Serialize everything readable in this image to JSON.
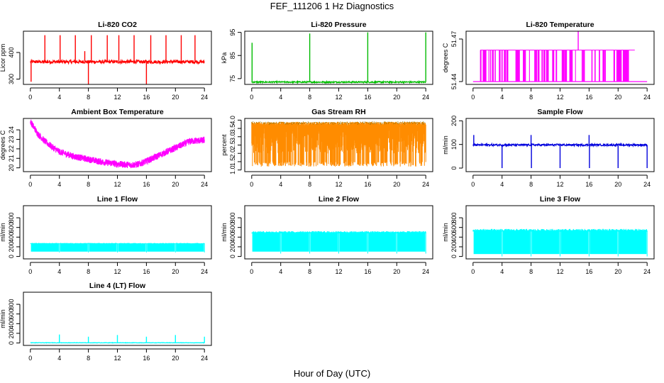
{
  "figure": {
    "title": "FEF_111206  1 Hz Diagnostics",
    "xlabel": "Hour of Day (UTC)"
  },
  "chart_data": [
    {
      "id": "co2",
      "type": "line",
      "title": "Li-820 CO2",
      "ylabel": "Licor ppm",
      "color": "#ff0000",
      "xlim": [
        0,
        24
      ],
      "xticks": [
        0,
        4,
        8,
        12,
        16,
        20,
        24
      ],
      "ylim": [
        280,
        480
      ],
      "yticks": [
        300,
        400
      ],
      "baseline": 365,
      "noise": 6,
      "spikes": [
        {
          "x": 2.0,
          "y": 465
        },
        {
          "x": 4.1,
          "y": 465
        },
        {
          "x": 6.2,
          "y": 465
        },
        {
          "x": 7.5,
          "y": 405
        },
        {
          "x": 8.0,
          "y": 280
        },
        {
          "x": 8.4,
          "y": 465
        },
        {
          "x": 10.6,
          "y": 465
        },
        {
          "x": 12.2,
          "y": 465
        },
        {
          "x": 14.3,
          "y": 465
        },
        {
          "x": 16.0,
          "y": 280
        },
        {
          "x": 16.6,
          "y": 465
        },
        {
          "x": 18.7,
          "y": 465
        },
        {
          "x": 20.8,
          "y": 465
        },
        {
          "x": 22.7,
          "y": 465
        },
        {
          "x": 0.1,
          "y": 290
        }
      ]
    },
    {
      "id": "pressure",
      "type": "line",
      "title": "Li-820 Pressure",
      "ylabel": "kPa",
      "color": "#00bb00",
      "xlim": [
        0,
        24
      ],
      "xticks": [
        0,
        4,
        8,
        12,
        16,
        20,
        24
      ],
      "ylim": [
        72.5,
        95.5
      ],
      "yticks": [
        75,
        85,
        95
      ],
      "baseline": 73.5,
      "noise": 0.3,
      "spikes": [
        {
          "x": 0.05,
          "y": 90.5
        },
        {
          "x": 8.0,
          "y": 94.5
        },
        {
          "x": 16.0,
          "y": 95.0
        },
        {
          "x": 24.0,
          "y": 95.0
        }
      ]
    },
    {
      "id": "licor_temp",
      "type": "step",
      "title": "Li-820 Temperature",
      "ylabel": "degrees C",
      "color": "#ff00ff",
      "xlim": [
        0,
        24
      ],
      "xticks": [
        0,
        4,
        8,
        12,
        16,
        20,
        24
      ],
      "ylim": [
        51.438,
        51.4755
      ],
      "yticks": [
        51.44,
        51.47
      ],
      "low": 51.44,
      "high": 51.4622,
      "spikes": [
        {
          "x": 14.5,
          "y": 51.4755
        }
      ]
    },
    {
      "id": "ambient",
      "type": "line",
      "title": "Ambient Box Temperature",
      "ylabel": "degrees C",
      "color": "#ff00ff",
      "xlim": [
        0,
        24
      ],
      "xticks": [
        0,
        4,
        8,
        12,
        16,
        20,
        24
      ],
      "ylim": [
        19.6,
        25.2
      ],
      "yticks": [
        20,
        21,
        22,
        23,
        24
      ],
      "curve": [
        {
          "x": 0,
          "y": 24.9
        },
        {
          "x": 1,
          "y": 23.6
        },
        {
          "x": 2,
          "y": 22.8
        },
        {
          "x": 3,
          "y": 22.2
        },
        {
          "x": 4,
          "y": 21.7
        },
        {
          "x": 6,
          "y": 21.2
        },
        {
          "x": 8,
          "y": 20.9
        },
        {
          "x": 10,
          "y": 20.6
        },
        {
          "x": 12,
          "y": 20.4
        },
        {
          "x": 14,
          "y": 20.3
        },
        {
          "x": 15,
          "y": 20.4
        },
        {
          "x": 16,
          "y": 20.7
        },
        {
          "x": 18,
          "y": 21.4
        },
        {
          "x": 20,
          "y": 22.1
        },
        {
          "x": 22,
          "y": 22.8
        },
        {
          "x": 24,
          "y": 22.9
        }
      ],
      "noise": 0.35
    },
    {
      "id": "rh",
      "type": "band",
      "title": "Gas Stream RH",
      "ylabel": "percent",
      "color": "#ff8c00",
      "edge_color": "#7a6a00",
      "xlim": [
        0,
        24
      ],
      "xticks": [
        0,
        4,
        8,
        12,
        16,
        20,
        24
      ],
      "ylim": [
        0.9,
        4.1
      ],
      "yticks": [
        1.0,
        1.5,
        2.0,
        2.5,
        3.0,
        3.5,
        4.0
      ],
      "low": 1.2,
      "high": 3.9
    },
    {
      "id": "sample_flow",
      "type": "line",
      "title": "Sample Flow",
      "ylabel": "ml/min",
      "color": "#0000dd",
      "xlim": [
        0,
        24
      ],
      "xticks": [
        0,
        4,
        8,
        12,
        16,
        20,
        24
      ],
      "ylim": [
        -15,
        210
      ],
      "yticks": [
        0,
        100,
        200
      ],
      "baseline": 98,
      "noise": 4,
      "spikes": [
        {
          "x": 0.1,
          "y": 140
        },
        {
          "x": 4.0,
          "y": 0
        },
        {
          "x": 8.0,
          "y": 140
        },
        {
          "x": 8.05,
          "y": 0
        },
        {
          "x": 12.0,
          "y": 0
        },
        {
          "x": 16.0,
          "y": 140
        },
        {
          "x": 16.05,
          "y": 0
        },
        {
          "x": 20.0,
          "y": 0
        },
        {
          "x": 24.0,
          "y": 0
        }
      ]
    },
    {
      "id": "line1",
      "type": "band",
      "title": "Line 1 Flow",
      "ylabel": "ml/min",
      "color": "#00ffff",
      "xlim": [
        0,
        24
      ],
      "xticks": [
        0,
        4,
        8,
        12,
        16,
        20,
        24
      ],
      "ylim": [
        -50,
        1050
      ],
      "yticks": [
        0,
        200,
        400,
        600,
        800
      ],
      "low": 100,
      "high": 270,
      "gaps": [
        4,
        8,
        12,
        16,
        20,
        24
      ]
    },
    {
      "id": "line2",
      "type": "band",
      "title": "Line 2 Flow",
      "ylabel": "ml/min",
      "color": "#00ffff",
      "xlim": [
        0,
        24
      ],
      "xticks": [
        0,
        4,
        8,
        12,
        16,
        20,
        24
      ],
      "ylim": [
        -50,
        1050
      ],
      "yticks": [
        0,
        200,
        400,
        600,
        800
      ],
      "low": 100,
      "high": 500,
      "gaps": [
        4,
        8,
        12,
        16,
        20,
        24
      ]
    },
    {
      "id": "line3",
      "type": "band",
      "title": "Line 3 Flow",
      "ylabel": "ml/min",
      "color": "#00ffff",
      "xlim": [
        0,
        24
      ],
      "xticks": [
        0,
        4,
        8,
        12,
        16,
        20,
        24
      ],
      "ylim": [
        -50,
        1050
      ],
      "yticks": [
        0,
        200,
        400,
        600,
        800
      ],
      "low": 50,
      "high": 540,
      "gaps": [
        4,
        8,
        12,
        16,
        20,
        24
      ]
    },
    {
      "id": "line4",
      "type": "line",
      "title": "Line 4 (LT) Flow",
      "ylabel": "ml/min",
      "color": "#00ffff",
      "xlim": [
        0,
        24
      ],
      "xticks": [
        0,
        4,
        8,
        12,
        16,
        20,
        24
      ],
      "ylim": [
        -50,
        1050
      ],
      "yticks": [
        0,
        200,
        400,
        600,
        800
      ],
      "baseline": 5,
      "noise": 4,
      "spikes": [
        {
          "x": 4.0,
          "y": 175
        },
        {
          "x": 8.0,
          "y": 130
        },
        {
          "x": 12.0,
          "y": 165
        },
        {
          "x": 16.0,
          "y": 130
        },
        {
          "x": 20.0,
          "y": 165
        },
        {
          "x": 24.0,
          "y": 130
        }
      ]
    }
  ]
}
